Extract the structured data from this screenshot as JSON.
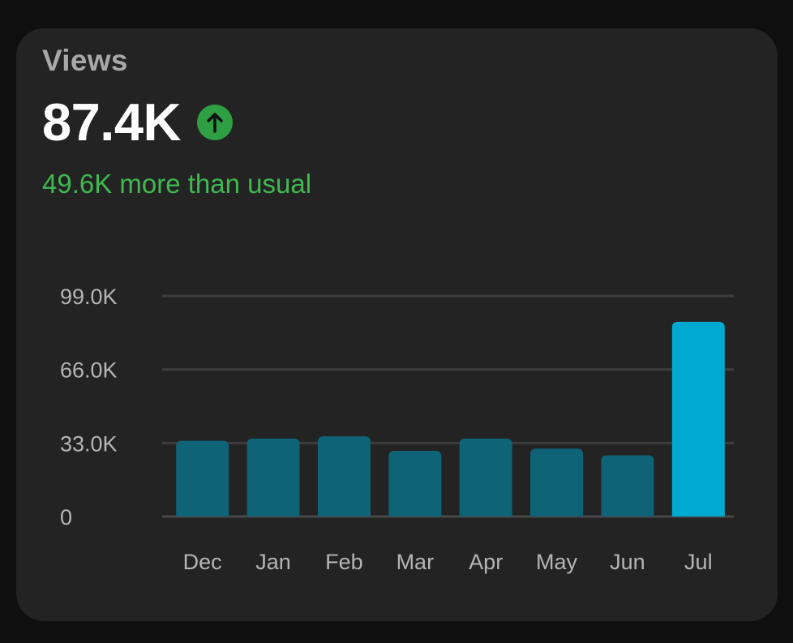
{
  "card": {
    "title": "Views",
    "value": "87.4K",
    "trend_icon": "arrow-up-icon",
    "trend_color": "#2ea043",
    "subtitle": "49.6K more than usual",
    "subtitle_color": "#3fb950"
  },
  "chart_data": {
    "type": "bar",
    "categories": [
      "Dec",
      "Jan",
      "Feb",
      "Mar",
      "Apr",
      "May",
      "Jun",
      "Jul"
    ],
    "values": [
      34000,
      35000,
      36000,
      29500,
      35000,
      30500,
      27500,
      87400
    ],
    "highlight_index": 7,
    "bar_color": "#0e6377",
    "highlight_color": "#00a9cf",
    "ylim": [
      0,
      99000
    ],
    "yticks": [
      0,
      33000,
      66000,
      99000
    ],
    "ytick_labels": [
      "0",
      "33.0K",
      "66.0K",
      "99.0K"
    ],
    "grid": true,
    "legend": "none"
  }
}
